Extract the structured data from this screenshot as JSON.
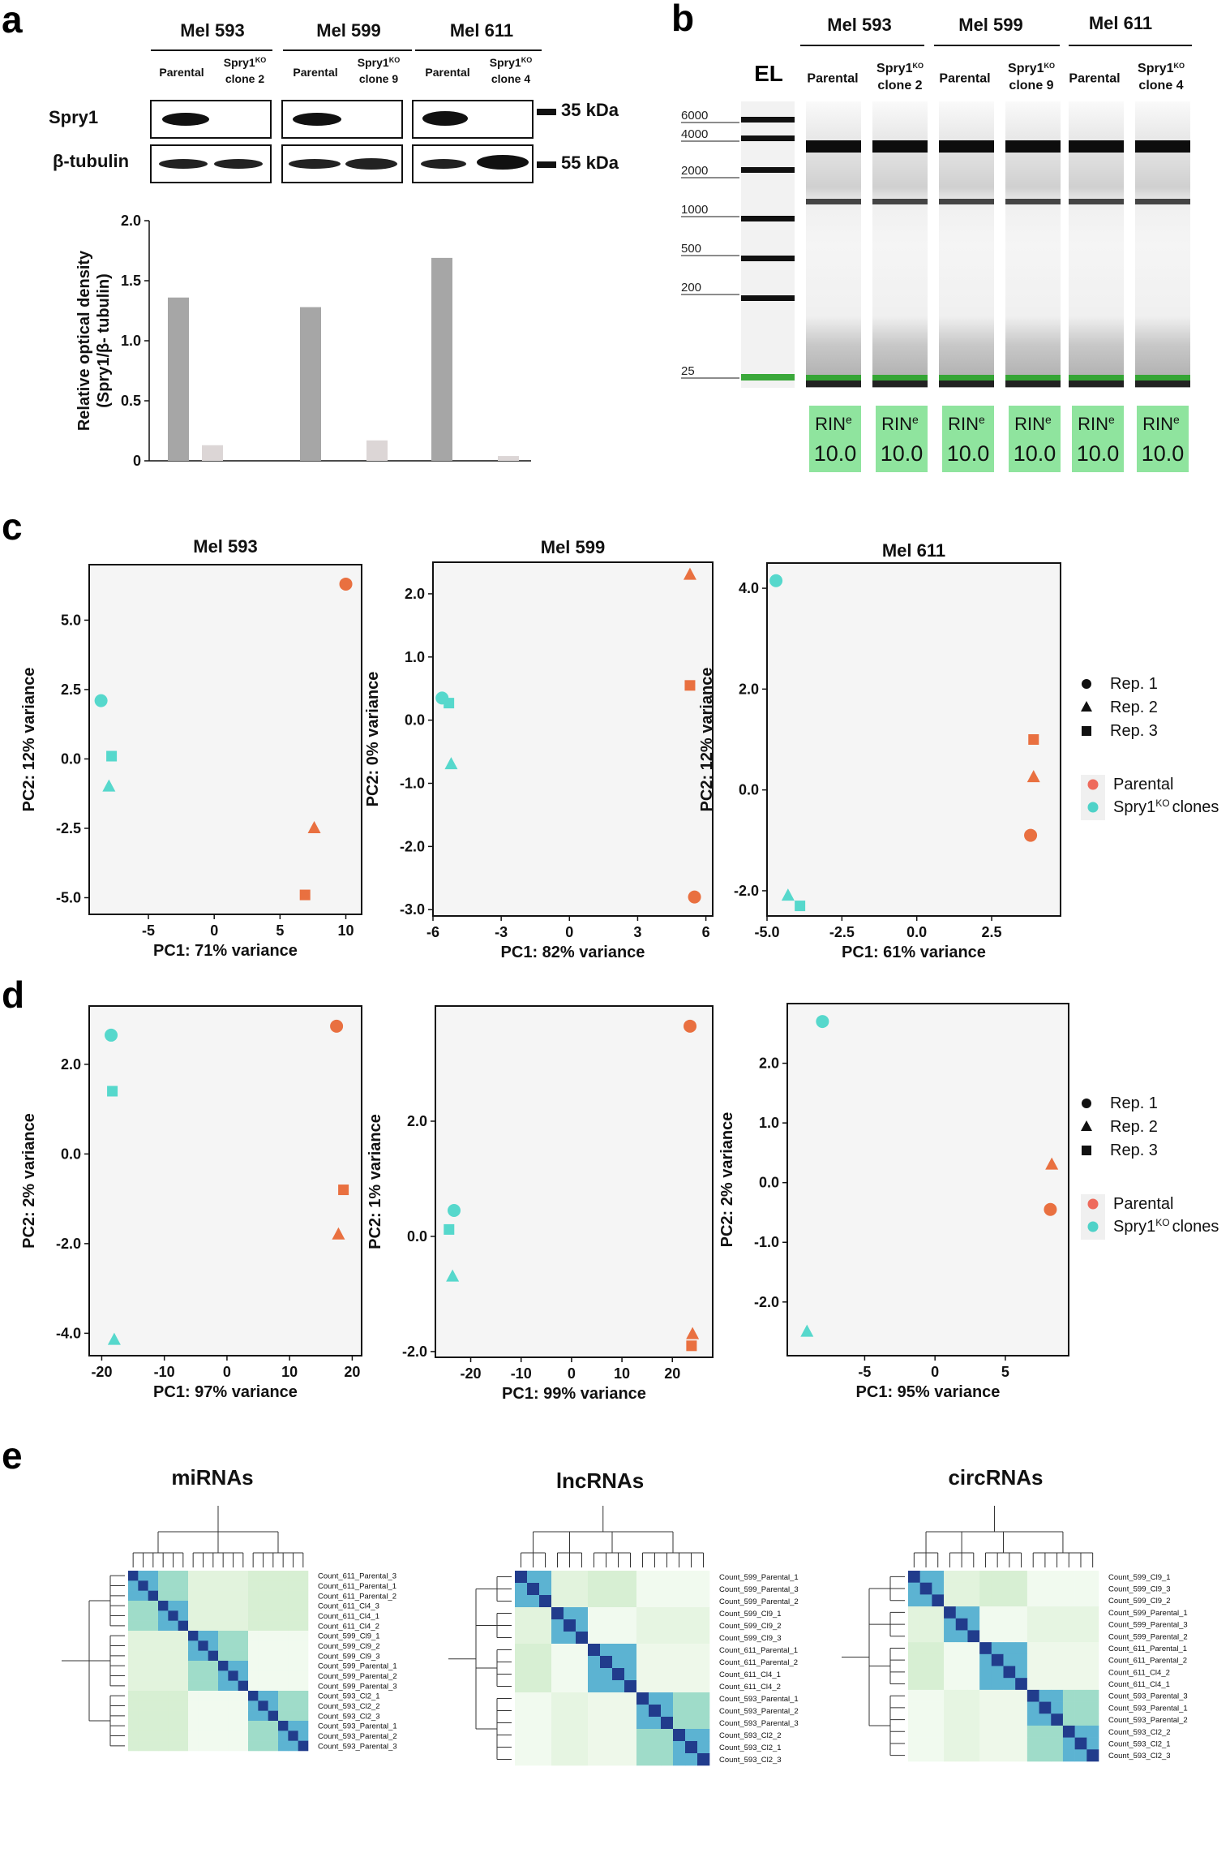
{
  "panel_labels": {
    "a": "a",
    "b": "b",
    "c": "c",
    "d": "d",
    "e": "e"
  },
  "blot": {
    "cell_lines": [
      "Mel 593",
      "Mel 599",
      "Mel 611"
    ],
    "lanes": [
      {
        "line1": "Parental",
        "line2": ""
      },
      {
        "line1": "Spry1",
        "sup": "KO",
        "line2": "clone 2"
      },
      {
        "line1": "Parental",
        "line2": ""
      },
      {
        "line1": "Spry1",
        "sup": "KO",
        "line2": "clone 9"
      },
      {
        "line1": "Parental",
        "line2": ""
      },
      {
        "line1": "Spry1",
        "sup": "KO",
        "line2": "clone 4"
      }
    ],
    "row_labels": [
      "Spry1",
      "β-tubulin"
    ],
    "kda_labels": [
      "35 kDa",
      "55 kDa"
    ]
  },
  "chart_data": [
    {
      "panel": "a",
      "type": "bar",
      "categories": [
        "Mel 593 Parental",
        "Mel 593 Spry1KO clone 2",
        "Mel 599 Parental",
        "Mel 599 Spry1KO clone 9",
        "Mel 611 Parental",
        "Mel 611 Spry1KO clone 4"
      ],
      "values": [
        1.36,
        0.13,
        1.28,
        0.17,
        1.69,
        0.04
      ],
      "bar_colors": [
        "#a6a6a6",
        "#dcd6d6",
        "#a6a6a6",
        "#dcd6d6",
        "#a6a6a6",
        "#dcd6d6"
      ],
      "ylabel_line1": "Relative optical density",
      "ylabel_line2": "(Spry1/β- tubulin)",
      "ylim": [
        0,
        2.0
      ],
      "yticks": [
        "0",
        "0.5",
        "1.0",
        "1.5",
        "2.0"
      ],
      "grid": false
    },
    {
      "panel": "c",
      "type": "scatter",
      "title": "Mel 593",
      "xlabel": "PC1: 71% variance",
      "ylabel": "PC2: 12% variance",
      "xlim": [
        -9.5,
        11.2
      ],
      "ylim": [
        -5.6,
        7.0
      ],
      "xticks": [
        -5,
        0,
        5,
        10
      ],
      "xtick_labels": [
        "-5",
        "0",
        "5",
        "10"
      ],
      "yticks": [
        -5,
        -2.5,
        0,
        2.5,
        5
      ],
      "ytick_labels": [
        "-5.0",
        "-2.5",
        "0.0",
        "2.5",
        "5.0"
      ],
      "points": [
        {
          "x": 10.0,
          "y": 6.3,
          "shape": "circle",
          "group": "Parental"
        },
        {
          "x": 7.6,
          "y": -2.5,
          "shape": "triangle",
          "group": "Parental"
        },
        {
          "x": 6.9,
          "y": -4.9,
          "shape": "square",
          "group": "Parental"
        },
        {
          "x": -8.6,
          "y": 2.1,
          "shape": "circle",
          "group": "Spry1KO clones"
        },
        {
          "x": -7.8,
          "y": 0.1,
          "shape": "square",
          "group": "Spry1KO clones"
        },
        {
          "x": -8.0,
          "y": -1.0,
          "shape": "triangle",
          "group": "Spry1KO clones"
        }
      ]
    },
    {
      "panel": "c",
      "type": "scatter",
      "title": "Mel 599",
      "xlabel": "PC1: 82% variance",
      "ylabel": "PC2: 0% variance",
      "xlim": [
        -6.0,
        6.3
      ],
      "ylim": [
        -3.1,
        2.5
      ],
      "xticks": [
        -6,
        -3,
        0,
        3,
        6
      ],
      "xtick_labels": [
        "-6",
        "-3",
        "0",
        "3",
        "6"
      ],
      "yticks": [
        -3,
        -2,
        -1,
        0,
        1,
        2
      ],
      "ytick_labels": [
        "-3.0",
        "-2.0",
        "-1.0",
        "0.0",
        "1.0",
        "2.0"
      ],
      "points": [
        {
          "x": 5.3,
          "y": 2.3,
          "shape": "triangle",
          "group": "Parental"
        },
        {
          "x": 5.3,
          "y": 0.55,
          "shape": "square",
          "group": "Parental"
        },
        {
          "x": 5.5,
          "y": -2.8,
          "shape": "circle",
          "group": "Parental"
        },
        {
          "x": -5.6,
          "y": 0.35,
          "shape": "circle",
          "group": "Spry1KO clones"
        },
        {
          "x": -5.3,
          "y": 0.27,
          "shape": "square",
          "group": "Spry1KO clones"
        },
        {
          "x": -5.2,
          "y": -0.7,
          "shape": "triangle",
          "group": "Spry1KO clones"
        }
      ]
    },
    {
      "panel": "c",
      "type": "scatter",
      "title": "Mel 611",
      "xlabel": "PC1: 61% variance",
      "ylabel": "PC2: 12% variance",
      "xlim": [
        -5.0,
        4.8
      ],
      "ylim": [
        -2.5,
        4.5
      ],
      "xticks": [
        -5,
        -2.5,
        0,
        2.5
      ],
      "xtick_labels": [
        "-5.0",
        "-2.5",
        "0.0",
        "2.5"
      ],
      "yticks": [
        -2,
        0,
        2,
        4
      ],
      "ytick_labels": [
        "-2.0",
        "0.0",
        "2.0",
        "4.0"
      ],
      "points": [
        {
          "x": 3.9,
          "y": 1.0,
          "shape": "square",
          "group": "Parental"
        },
        {
          "x": 3.9,
          "y": 0.25,
          "shape": "triangle",
          "group": "Parental"
        },
        {
          "x": 3.8,
          "y": -0.9,
          "shape": "circle",
          "group": "Parental"
        },
        {
          "x": -4.7,
          "y": 4.15,
          "shape": "circle",
          "group": "Spry1KO clones"
        },
        {
          "x": -4.3,
          "y": -2.1,
          "shape": "triangle",
          "group": "Spry1KO clones"
        },
        {
          "x": -3.9,
          "y": -2.3,
          "shape": "square",
          "group": "Spry1KO clones"
        }
      ]
    },
    {
      "panel": "d",
      "type": "scatter",
      "title": "",
      "xlabel": "PC1: 97% variance",
      "ylabel": "PC2: 2% variance",
      "xlim": [
        -22,
        21.5
      ],
      "ylim": [
        -4.5,
        3.3
      ],
      "xticks": [
        -20,
        -10,
        0,
        10,
        20
      ],
      "xtick_labels": [
        "-20",
        "-10",
        "0",
        "10",
        "20"
      ],
      "yticks": [
        -4,
        -2,
        0,
        2
      ],
      "ytick_labels": [
        "-4.0",
        "-2.0",
        "0.0",
        "2.0"
      ],
      "points": [
        {
          "x": 17.5,
          "y": 2.85,
          "shape": "circle",
          "group": "Parental"
        },
        {
          "x": 18.6,
          "y": -0.8,
          "shape": "square",
          "group": "Parental"
        },
        {
          "x": 17.8,
          "y": -1.8,
          "shape": "triangle",
          "group": "Parental"
        },
        {
          "x": -18.5,
          "y": 2.65,
          "shape": "circle",
          "group": "Spry1KO clones"
        },
        {
          "x": -18.3,
          "y": 1.4,
          "shape": "square",
          "group": "Spry1KO clones"
        },
        {
          "x": -18.0,
          "y": -4.15,
          "shape": "triangle",
          "group": "Spry1KO clones"
        }
      ]
    },
    {
      "panel": "d",
      "type": "scatter",
      "title": "",
      "xlabel": "PC1: 99% variance",
      "ylabel": "PC2: 1% variance",
      "xlim": [
        -27,
        28
      ],
      "ylim": [
        -2.1,
        4.0
      ],
      "xticks": [
        -20,
        -10,
        0,
        10,
        20
      ],
      "xtick_labels": [
        "-20",
        "-10",
        "0",
        "10",
        "20"
      ],
      "yticks": [
        -2,
        0,
        2
      ],
      "ytick_labels": [
        "-2.0",
        "0.0",
        "2.0"
      ],
      "points": [
        {
          "x": 23.5,
          "y": 3.65,
          "shape": "circle",
          "group": "Parental"
        },
        {
          "x": 24.0,
          "y": -1.7,
          "shape": "triangle",
          "group": "Parental"
        },
        {
          "x": 23.8,
          "y": -1.9,
          "shape": "square",
          "group": "Parental"
        },
        {
          "x": -23.3,
          "y": 0.45,
          "shape": "circle",
          "group": "Spry1KO clones"
        },
        {
          "x": -24.3,
          "y": 0.12,
          "shape": "square",
          "group": "Spry1KO clones"
        },
        {
          "x": -23.6,
          "y": -0.7,
          "shape": "triangle",
          "group": "Spry1KO clones"
        }
      ]
    },
    {
      "panel": "d",
      "type": "scatter",
      "title": "",
      "xlabel": "PC1: 95% variance",
      "ylabel": "PC2: 2% variance",
      "xlim": [
        -10.5,
        9.5
      ],
      "ylim": [
        -2.9,
        3.0
      ],
      "xticks": [
        -5,
        0,
        5
      ],
      "xtick_labels": [
        "-5",
        "0",
        "5"
      ],
      "yticks": [
        -2,
        -1,
        0,
        1,
        2
      ],
      "ytick_labels": [
        "-2.0",
        "-1.0",
        "0.0",
        "1.0",
        "2.0"
      ],
      "points": [
        {
          "x": 8.3,
          "y": 0.3,
          "shape": "triangle",
          "group": "Parental"
        },
        {
          "x": 8.2,
          "y": -0.45,
          "shape": "circle",
          "group": "Parental"
        },
        {
          "x": -8.0,
          "y": 2.7,
          "shape": "circle",
          "group": "Spry1KO clones"
        },
        {
          "x": -9.1,
          "y": -2.5,
          "shape": "triangle",
          "group": "Spry1KO clones"
        }
      ]
    }
  ],
  "colors": {
    "parental": "#e97040",
    "ko": "#56d8cc",
    "parental_legend": "#ee6a5c",
    "ko_legend": "#4fd2c8",
    "plot_bg": "#f5f5f5",
    "rin_bg": "#8fe49e"
  },
  "gel": {
    "ladder_label": "EL",
    "cell_lines": [
      "Mel 593",
      "Mel 599",
      "Mel 611"
    ],
    "lanes": [
      {
        "line1": "Parental",
        "line2": ""
      },
      {
        "line1": "Spry1",
        "sup": "KO",
        "line2": "clone 2"
      },
      {
        "line1": "Parental",
        "line2": ""
      },
      {
        "line1": "Spry1",
        "sup": "KO",
        "line2": "clone 9"
      },
      {
        "line1": "Parental",
        "line2": ""
      },
      {
        "line1": "Spry1",
        "sup": "KO",
        "line2": "clone 4"
      }
    ],
    "ladder_markers": [
      "6000",
      "4000",
      "2000",
      "1000",
      "500",
      "200",
      "25"
    ],
    "rin_label": "RIN",
    "rin_sup": "e",
    "rin_values": [
      "10.0",
      "10.0",
      "10.0",
      "10.0",
      "10.0",
      "10.0"
    ]
  },
  "legend": {
    "shape_labels": [
      "Rep. 1",
      "Rep. 2",
      "Rep. 3"
    ],
    "group_labels": {
      "parental": "Parental",
      "ko_prefix": "Spry1",
      "ko_sup": "KO",
      "ko_suffix": "clones"
    }
  },
  "heatmaps": [
    {
      "title": "miRNAs",
      "labels": [
        "Count_611_Parental_3",
        "Count_611_Parental_1",
        "Count_611_Parental_2",
        "Count_611_Cl4_3",
        "Count_611_Cl4_1",
        "Count_611_Cl4_2",
        "Count_599_Cl9_1",
        "Count_599_Cl9_2",
        "Count_599_Cl9_3",
        "Count_599_Parental_1",
        "Count_599_Parental_2",
        "Count_599_Parental_3",
        "Count_593_Cl2_1",
        "Count_593_Cl2_2",
        "Count_593_Cl2_3",
        "Count_593_Parental_1",
        "Count_593_Parental_2",
        "Count_593_Parental_3"
      ],
      "blocks": [
        6,
        6,
        6
      ]
    },
    {
      "title": "lncRNAs",
      "labels": [
        "Count_599_Parental_1",
        "Count_599_Parental_3",
        "Count_599_Parental_2",
        "Count_599_Cl9_1",
        "Count_599_Cl9_2",
        "Count_599_Cl9_3",
        "Count_611_Parental_1",
        "Count_611_Parental_2",
        "Count_611_Cl4_1",
        "Count_611_Cl4_2",
        "Count_593_Parental_1",
        "Count_593_Parental_2",
        "Count_593_Parental_3",
        "Count_593_Cl2_2",
        "Count_593_Cl2_1",
        "Count_593_Cl2_3"
      ],
      "blocks": [
        3,
        3,
        4,
        6
      ]
    },
    {
      "title": "circRNAs",
      "labels": [
        "Count_599_Cl9_1",
        "Count_599_Cl9_3",
        "Count_599_Cl9_2",
        "Count_599_Parental_1",
        "Count_599_Parental_3",
        "Count_599_Parental_2",
        "Count_611_Parental_1",
        "Count_611_Parental_2",
        "Count_611_Cl4_2",
        "Count_611_Cl4_1",
        "Count_593_Parental_3",
        "Count_593_Parental_1",
        "Count_593_Parental_2",
        "Count_593_Cl2_2",
        "Count_593_Cl2_1",
        "Count_593_Cl2_3"
      ],
      "blocks": [
        3,
        3,
        4,
        6
      ]
    }
  ]
}
